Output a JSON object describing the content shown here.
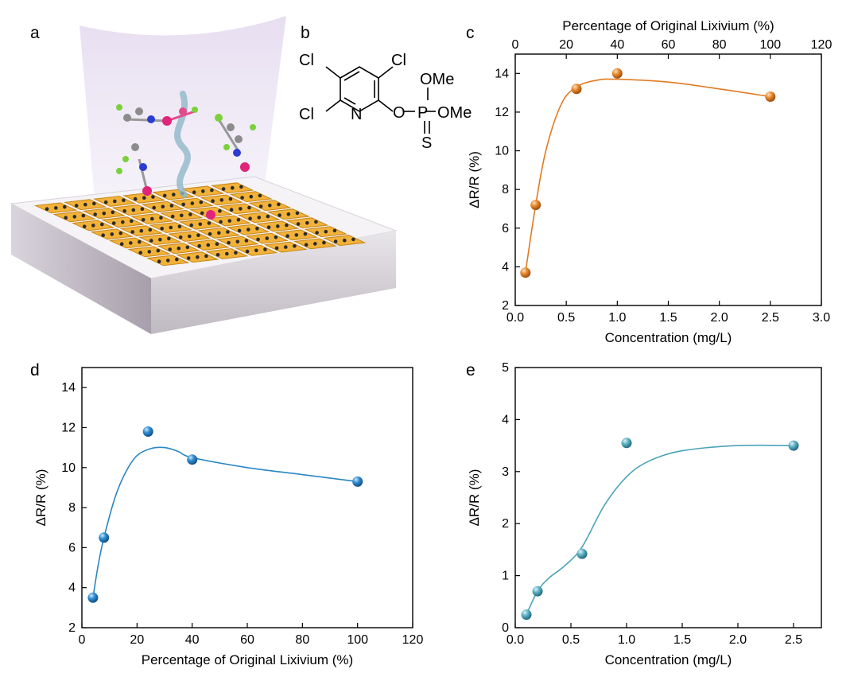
{
  "panels": {
    "a": {
      "label": "a"
    },
    "b": {
      "label": "b",
      "atoms": {
        "cl_top_left": "Cl",
        "cl_top_right": "Cl",
        "cl_left": "Cl",
        "nitrogen": "N",
        "oxygen": "O",
        "phosphorus": "P",
        "ome_top": "OMe",
        "ome_right": "OMe",
        "sulfur": "S"
      }
    },
    "c": {
      "label": "c"
    },
    "d": {
      "label": "d"
    },
    "e": {
      "label": "e"
    }
  },
  "colors": {
    "orange": "#e07b22",
    "blue": "#2a86c5",
    "teal": "#4aa3b8"
  },
  "chart_data": [
    {
      "id": "c",
      "type": "scatter",
      "x": [
        0.1,
        0.2,
        0.6,
        1.0,
        2.5
      ],
      "y": [
        3.7,
        7.2,
        13.2,
        14.0,
        12.8
      ],
      "fit_line": {
        "x": [
          0.1,
          0.2,
          0.3,
          0.45,
          0.6,
          0.8,
          1.0,
          1.5,
          2.0,
          2.5
        ],
        "y": [
          3.7,
          7.2,
          10.0,
          12.4,
          13.3,
          13.65,
          13.7,
          13.55,
          13.2,
          12.8
        ]
      },
      "xlabel": "Concentration (mg/L)",
      "ylabel": "ΔR/R (%)",
      "x2label": "Percentage of Original Lixivium (%)",
      "xlim": [
        0,
        3.0
      ],
      "ylim": [
        2,
        15
      ],
      "x2lim": [
        0,
        120
      ],
      "xticks": [
        "0.0",
        "0.5",
        "1.0",
        "1.5",
        "2.0",
        "2.5",
        "3.0"
      ],
      "yticks": [
        "2",
        "4",
        "6",
        "8",
        "10",
        "12",
        "14"
      ],
      "x2ticks": [
        "0",
        "20",
        "40",
        "60",
        "80",
        "100",
        "120"
      ],
      "color": "orange"
    },
    {
      "id": "d",
      "type": "scatter",
      "x": [
        4,
        8,
        24,
        40,
        100
      ],
      "y": [
        3.5,
        6.5,
        11.8,
        10.4,
        9.3
      ],
      "fit_line": {
        "x": [
          4,
          6,
          8,
          12,
          16,
          20,
          25,
          30,
          35,
          40,
          60,
          80,
          100
        ],
        "y": [
          3.5,
          5.2,
          6.5,
          8.5,
          9.8,
          10.6,
          10.95,
          11.0,
          10.8,
          10.5,
          10.0,
          9.65,
          9.3
        ]
      },
      "xlabel": "Percentage of Original Lixivium (%)",
      "ylabel": "ΔR/R (%)",
      "xlim": [
        0,
        120
      ],
      "ylim": [
        2,
        15
      ],
      "xticks": [
        "0",
        "20",
        "40",
        "60",
        "80",
        "100",
        "120"
      ],
      "yticks": [
        "2",
        "4",
        "6",
        "8",
        "10",
        "12",
        "14"
      ],
      "color": "blue"
    },
    {
      "id": "e",
      "type": "scatter",
      "x": [
        0.1,
        0.2,
        0.6,
        1.0,
        2.5
      ],
      "y": [
        0.25,
        0.7,
        1.42,
        3.55,
        3.5
      ],
      "fit_line": {
        "x": [
          0.1,
          0.2,
          0.3,
          0.45,
          0.6,
          0.8,
          1.0,
          1.2,
          1.5,
          2.0,
          2.5
        ],
        "y": [
          0.25,
          0.7,
          0.95,
          1.2,
          1.55,
          2.35,
          2.9,
          3.2,
          3.4,
          3.5,
          3.5
        ]
      },
      "xlabel": "Concentration (mg/L)",
      "ylabel": "ΔR/R (%)",
      "xlim": [
        0,
        2.75
      ],
      "ylim": [
        0,
        5
      ],
      "xticks": [
        "0.0",
        "0.5",
        "1.0",
        "1.5",
        "2.0",
        "2.5"
      ],
      "yticks": [
        "0",
        "1",
        "2",
        "3",
        "4",
        "5"
      ],
      "color": "teal"
    }
  ]
}
